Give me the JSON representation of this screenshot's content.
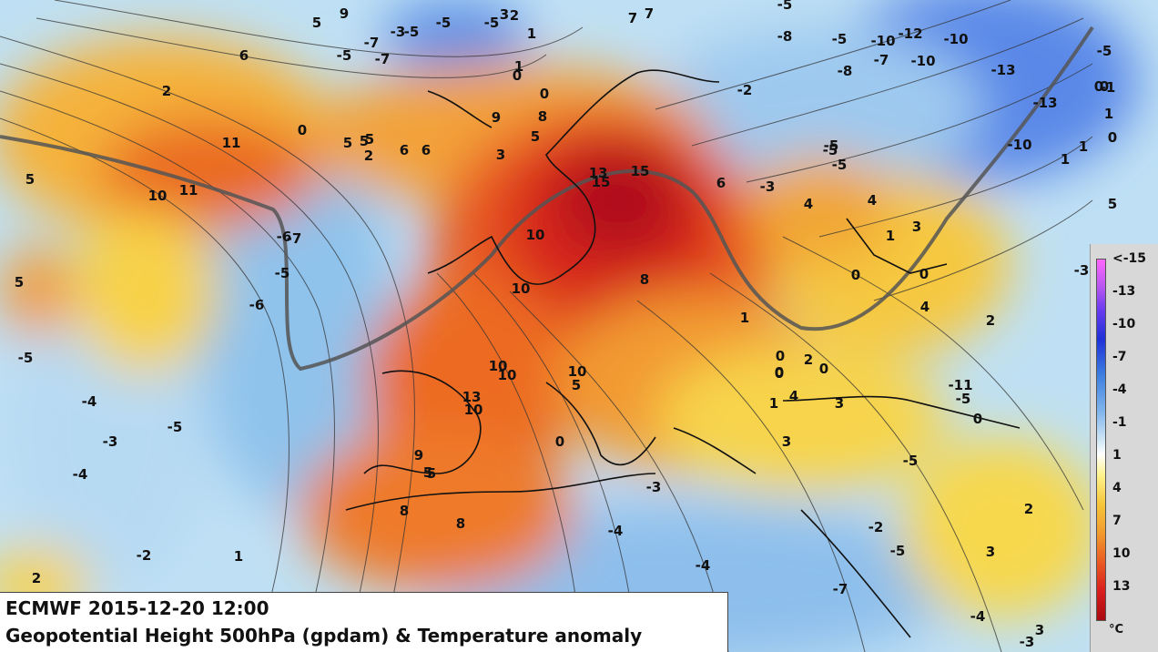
{
  "info": {
    "line1": "ECMWF 2015-12-20 12:00",
    "line2": "Geopotential Height 500hPa (gpdam) & Temperature anomaly 850hPa (K)"
  },
  "legend": {
    "unit": "°C",
    "ticks": [
      "<-15",
      "-13",
      "-10",
      "-7",
      "-4",
      "-1",
      "1",
      "4",
      "7",
      "10",
      "13"
    ]
  },
  "map_labels": [
    "5",
    "9",
    "-5",
    "2",
    "7",
    "7",
    "-5",
    "-8",
    "-5",
    "-10",
    "-12",
    "-10",
    "-13",
    "-13",
    "-10",
    "-8",
    "-7",
    "-10",
    "1",
    "6",
    "-5",
    "-7",
    "-5",
    "-7",
    "-3",
    "-5",
    "2",
    "3",
    "1",
    "0",
    "0",
    "-2",
    "5",
    "2",
    "11",
    "10",
    "11",
    "5",
    "0",
    "5",
    "5",
    "6",
    "6",
    "9",
    "8",
    "5",
    "3",
    "15",
    "15",
    "13",
    "6",
    "-3",
    "-5",
    "-5",
    "4",
    "4",
    "3",
    "1",
    "0",
    "0",
    "-3",
    "5",
    "-5",
    "-7",
    "-6",
    "10",
    "10",
    "8",
    "2",
    "4",
    "1",
    "0",
    "0",
    "2",
    "0",
    "-5",
    "-6",
    "-5",
    "-3",
    "-4",
    "-4",
    "-2",
    "1",
    "2",
    "-5",
    "10",
    "10",
    "13",
    "10",
    "10",
    "5",
    "9",
    "5",
    "8",
    "8",
    "1",
    "0",
    "4",
    "3",
    "3",
    "-11",
    "-5",
    "0",
    "-3",
    "-4",
    "-4",
    "-7",
    "-5",
    "-5",
    "2",
    "3",
    "-4",
    "-3",
    "3",
    "-2",
    "1",
    "-5",
    "5",
    "0",
    "1",
    "0",
    "0",
    "-1",
    "1",
    "0",
    "5",
    "-3"
  ]
}
